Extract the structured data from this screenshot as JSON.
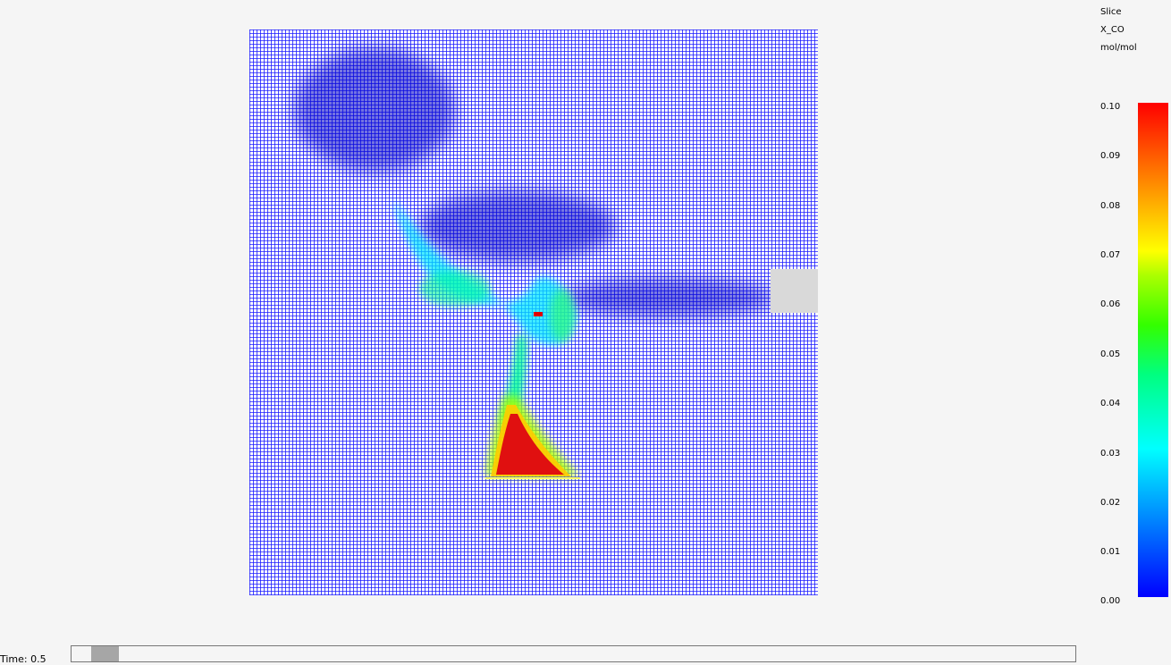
{
  "colorbar": {
    "title": "Slice",
    "quantity": "X_CO",
    "units": "mol/mol",
    "ticks": [
      "0.10",
      "0.09",
      "0.08",
      "0.07",
      "0.06",
      "0.05",
      "0.04",
      "0.03",
      "0.02",
      "0.01",
      "0.00"
    ]
  },
  "time": {
    "label": "Time: 0.5",
    "slider_position": 0.02
  },
  "colors": {
    "background": "#f5f5f5",
    "min_color": "#0000ff",
    "max_color": "#ff0000",
    "obstruction": "#d9d9d9"
  }
}
